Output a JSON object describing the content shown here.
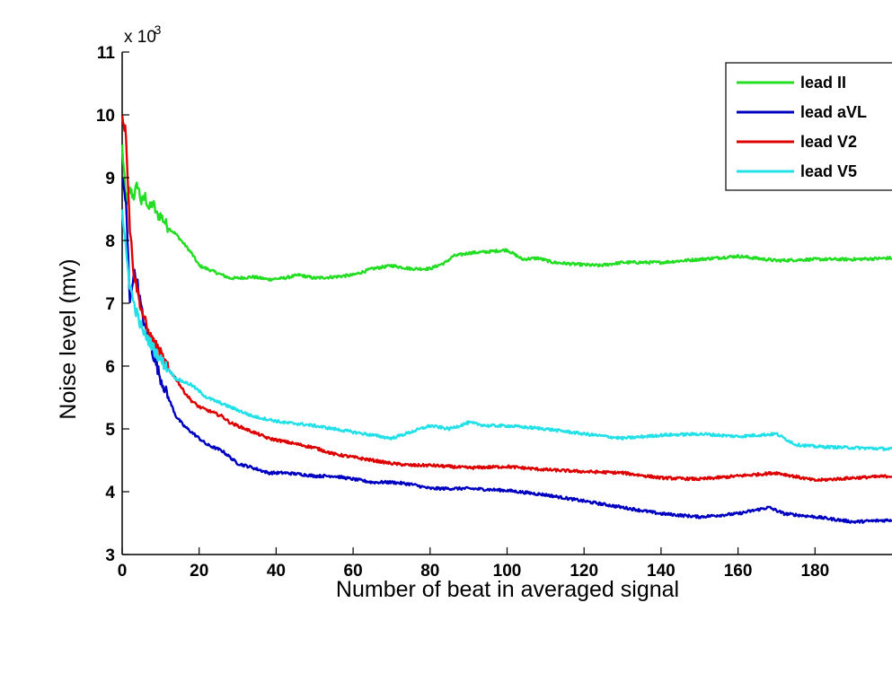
{
  "chart_data": {
    "type": "line",
    "xlabel": "Number of beat in averaged signal",
    "ylabel": "Noise level (mv)",
    "y_multiplier": "x 10",
    "y_multiplier_exp": "-3",
    "xlim": [
      0,
      200
    ],
    "ylim": [
      3,
      11
    ],
    "grid": false,
    "legend_position": "top-right",
    "x_ticks": [
      "0",
      "20",
      "40",
      "60",
      "80",
      "100",
      "120",
      "140",
      "160",
      "180"
    ],
    "y_ticks": [
      "3",
      "4",
      "5",
      "6",
      "7",
      "8",
      "9",
      "10",
      "11"
    ],
    "series": [
      {
        "name": "lead II",
        "color": "#22dd22",
        "x": [
          0,
          1,
          2,
          3,
          4,
          5,
          6,
          7,
          8,
          9,
          10,
          12,
          14,
          16,
          18,
          20,
          22,
          24,
          26,
          28,
          30,
          34,
          38,
          42,
          46,
          50,
          55,
          60,
          65,
          70,
          75,
          80,
          84,
          86,
          90,
          95,
          100,
          104,
          108,
          112,
          118,
          124,
          130,
          140,
          150,
          160,
          170,
          180,
          190,
          200
        ],
        "y": [
          9.5,
          8.6,
          8.8,
          8.7,
          8.9,
          8.6,
          8.7,
          8.5,
          8.6,
          8.4,
          8.4,
          8.2,
          8.1,
          7.95,
          7.8,
          7.6,
          7.55,
          7.5,
          7.45,
          7.4,
          7.4,
          7.42,
          7.38,
          7.4,
          7.45,
          7.4,
          7.42,
          7.45,
          7.55,
          7.6,
          7.55,
          7.55,
          7.65,
          7.75,
          7.8,
          7.82,
          7.85,
          7.7,
          7.72,
          7.65,
          7.62,
          7.6,
          7.65,
          7.65,
          7.7,
          7.75,
          7.68,
          7.7,
          7.7,
          7.72
        ]
      },
      {
        "name": "lead aVL",
        "color": "#0000c0",
        "x": [
          0,
          1,
          2,
          3,
          4,
          5,
          6,
          7,
          8,
          9,
          10,
          12,
          14,
          16,
          18,
          20,
          22,
          24,
          26,
          28,
          30,
          34,
          38,
          42,
          46,
          50,
          55,
          60,
          65,
          70,
          75,
          80,
          90,
          100,
          110,
          120,
          130,
          140,
          150,
          160,
          168,
          172,
          180,
          190,
          200
        ],
        "y": [
          9.0,
          8.6,
          7.0,
          7.5,
          7.3,
          6.9,
          6.6,
          6.4,
          6.2,
          6.0,
          5.8,
          5.5,
          5.2,
          5.05,
          4.95,
          4.85,
          4.75,
          4.7,
          4.65,
          4.55,
          4.45,
          4.38,
          4.3,
          4.3,
          4.28,
          4.25,
          4.25,
          4.2,
          4.15,
          4.15,
          4.12,
          4.05,
          4.05,
          4.02,
          3.95,
          3.85,
          3.75,
          3.65,
          3.6,
          3.65,
          3.75,
          3.65,
          3.6,
          3.52,
          3.55
        ]
      },
      {
        "name": "lead V2",
        "color": "#dd0000",
        "x": [
          0,
          1,
          2,
          3,
          4,
          5,
          6,
          7,
          8,
          9,
          10,
          12,
          14,
          16,
          18,
          20,
          22,
          24,
          26,
          28,
          30,
          34,
          38,
          42,
          46,
          50,
          55,
          60,
          65,
          70,
          75,
          80,
          90,
          100,
          110,
          120,
          130,
          140,
          150,
          160,
          170,
          180,
          190,
          200
        ],
        "y": [
          10.0,
          9.7,
          8.2,
          7.5,
          7.2,
          6.9,
          6.7,
          6.5,
          6.4,
          6.3,
          6.2,
          5.95,
          5.8,
          5.6,
          5.45,
          5.35,
          5.3,
          5.25,
          5.2,
          5.1,
          5.05,
          4.95,
          4.85,
          4.8,
          4.75,
          4.7,
          4.6,
          4.55,
          4.5,
          4.45,
          4.42,
          4.42,
          4.38,
          4.4,
          4.35,
          4.32,
          4.3,
          4.22,
          4.2,
          4.25,
          4.3,
          4.18,
          4.22,
          4.25
        ]
      },
      {
        "name": "lead V5",
        "color": "#22e0e8",
        "x": [
          0,
          1,
          2,
          3,
          4,
          5,
          6,
          7,
          8,
          9,
          10,
          12,
          14,
          16,
          18,
          20,
          22,
          24,
          26,
          28,
          30,
          34,
          38,
          42,
          46,
          50,
          55,
          60,
          65,
          70,
          75,
          80,
          85,
          90,
          95,
          100,
          110,
          120,
          130,
          140,
          150,
          160,
          170,
          175,
          180,
          190,
          200
        ],
        "y": [
          8.5,
          7.8,
          7.3,
          7.0,
          6.8,
          6.6,
          6.5,
          6.4,
          6.3,
          6.2,
          6.1,
          5.95,
          5.8,
          5.75,
          5.7,
          5.6,
          5.5,
          5.45,
          5.4,
          5.35,
          5.3,
          5.2,
          5.15,
          5.1,
          5.08,
          5.05,
          5.0,
          4.95,
          4.9,
          4.85,
          4.95,
          5.05,
          5.0,
          5.1,
          5.05,
          5.05,
          5.0,
          4.92,
          4.85,
          4.9,
          4.92,
          4.88,
          4.92,
          4.75,
          4.72,
          4.7,
          4.68
        ]
      }
    ]
  }
}
